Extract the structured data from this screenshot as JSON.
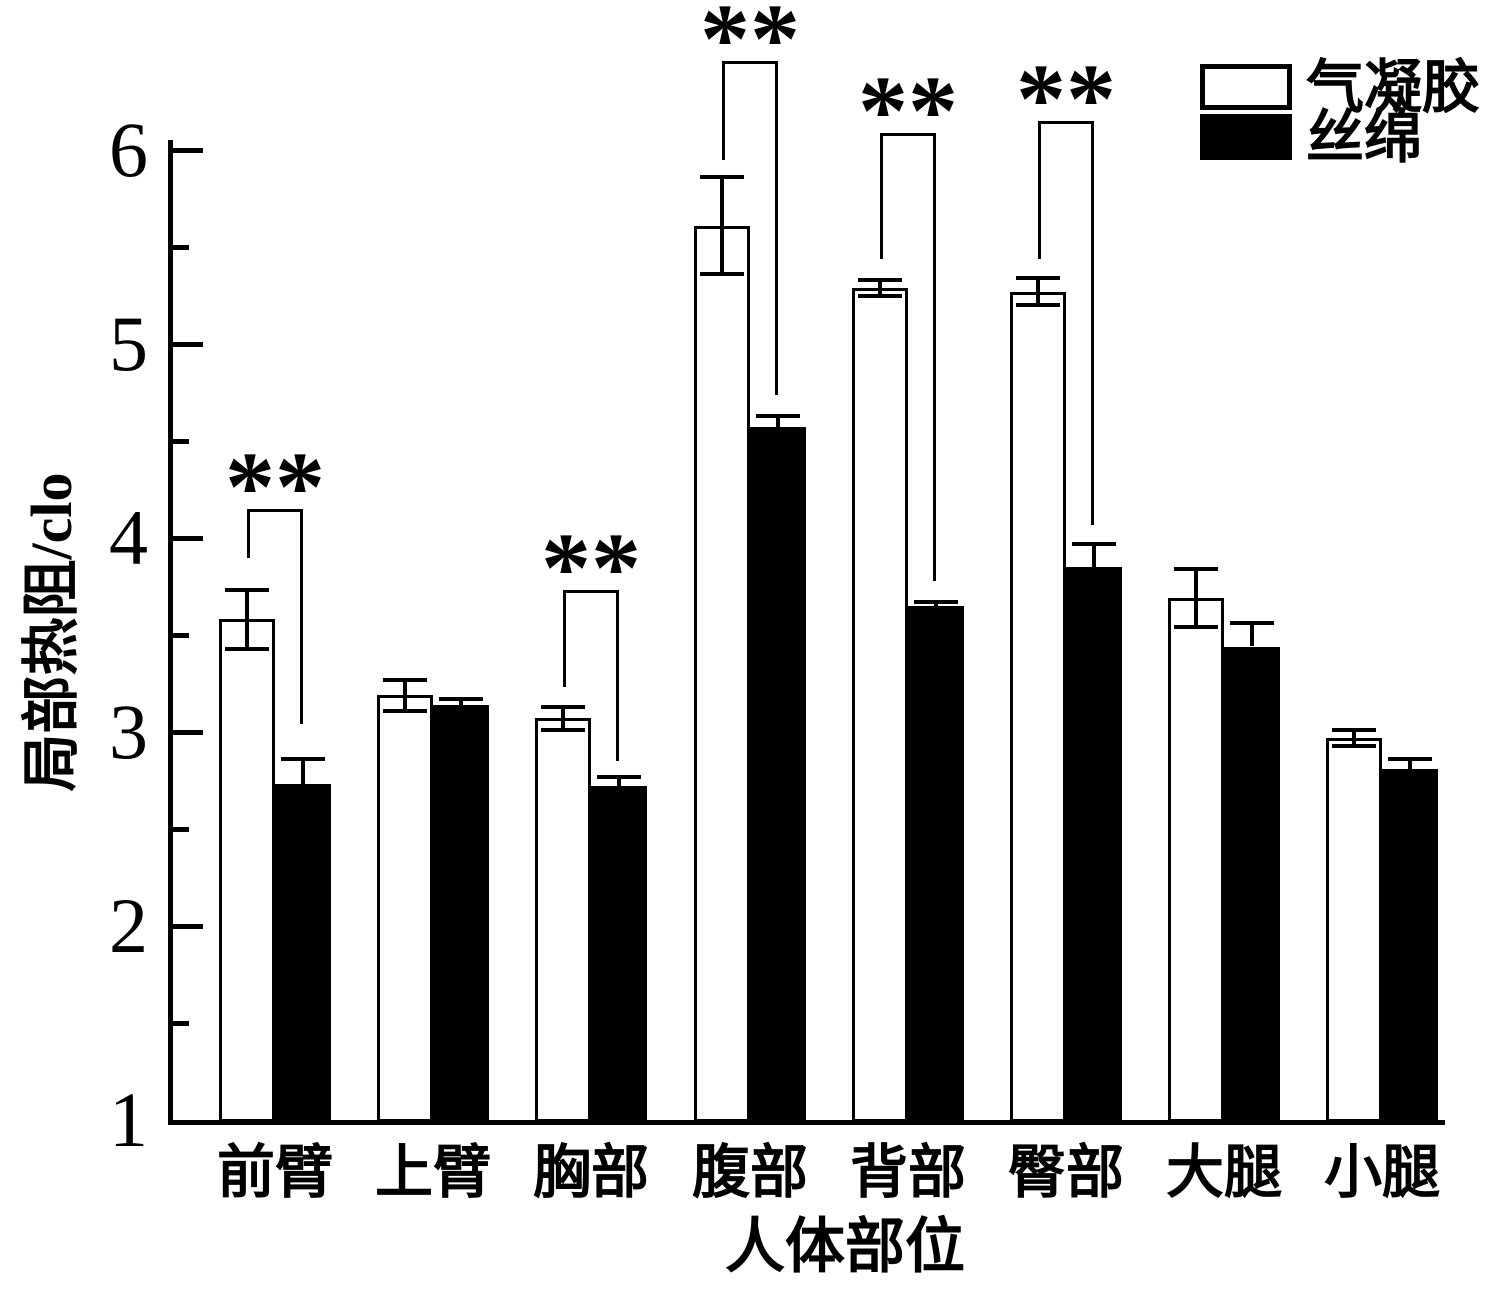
{
  "chart_data": {
    "type": "bar",
    "title": "",
    "xlabel": "人体部位",
    "ylabel": "局部热阻/clo",
    "ylim": [
      1,
      6.5
    ],
    "yticks_major": [
      1,
      2,
      3,
      4,
      5,
      6
    ],
    "ytick_labels": [
      "1",
      "2",
      "3",
      "4",
      "5",
      "6"
    ],
    "yticks_minor": [
      1.5,
      2.5,
      3.5,
      4.5,
      5.5
    ],
    "grid": "off",
    "categories": [
      "前臂",
      "上臂",
      "胸部",
      "腹部",
      "背部",
      "臀部",
      "大腿",
      "小腿"
    ],
    "series": [
      {
        "name": "气凝胶",
        "fill": "#ffffff",
        "stroke": "#000000",
        "values": [
          3.58,
          3.19,
          3.07,
          5.61,
          5.29,
          5.27,
          3.69,
          2.97
        ],
        "errors": [
          0.15,
          0.08,
          0.06,
          0.25,
          0.04,
          0.07,
          0.15,
          0.04
        ]
      },
      {
        "name": "丝绵",
        "fill": "#000000",
        "stroke": "#000000",
        "values": [
          2.73,
          3.14,
          2.72,
          4.57,
          3.65,
          3.85,
          3.44,
          2.81
        ],
        "errors": [
          0.13,
          0.03,
          0.05,
          0.06,
          0.02,
          0.12,
          0.12,
          0.05
        ]
      }
    ],
    "significance": [
      {
        "category_index": 0,
        "label": "**",
        "bracket_top": 4.15,
        "left_drop_to": 3.9,
        "right_drop_to": 3.04
      },
      {
        "category_index": 2,
        "label": "**",
        "bracket_top": 3.73,
        "left_drop_to": 3.23,
        "right_drop_to": 2.85
      },
      {
        "category_index": 3,
        "label": "**",
        "bracket_top": 6.46,
        "left_drop_to": 5.95,
        "right_drop_to": 4.74
      },
      {
        "category_index": 4,
        "label": "**",
        "bracket_top": 6.09,
        "left_drop_to": 5.44,
        "right_drop_to": 3.78
      },
      {
        "category_index": 5,
        "label": "**",
        "bracket_top": 6.15,
        "left_drop_to": 5.44,
        "right_drop_to": 4.07
      }
    ],
    "legend": {
      "position": "top-right",
      "entries": [
        "气凝胶",
        "丝绵"
      ]
    },
    "colors": {
      "ink": "#000000",
      "background": "#ffffff"
    }
  }
}
